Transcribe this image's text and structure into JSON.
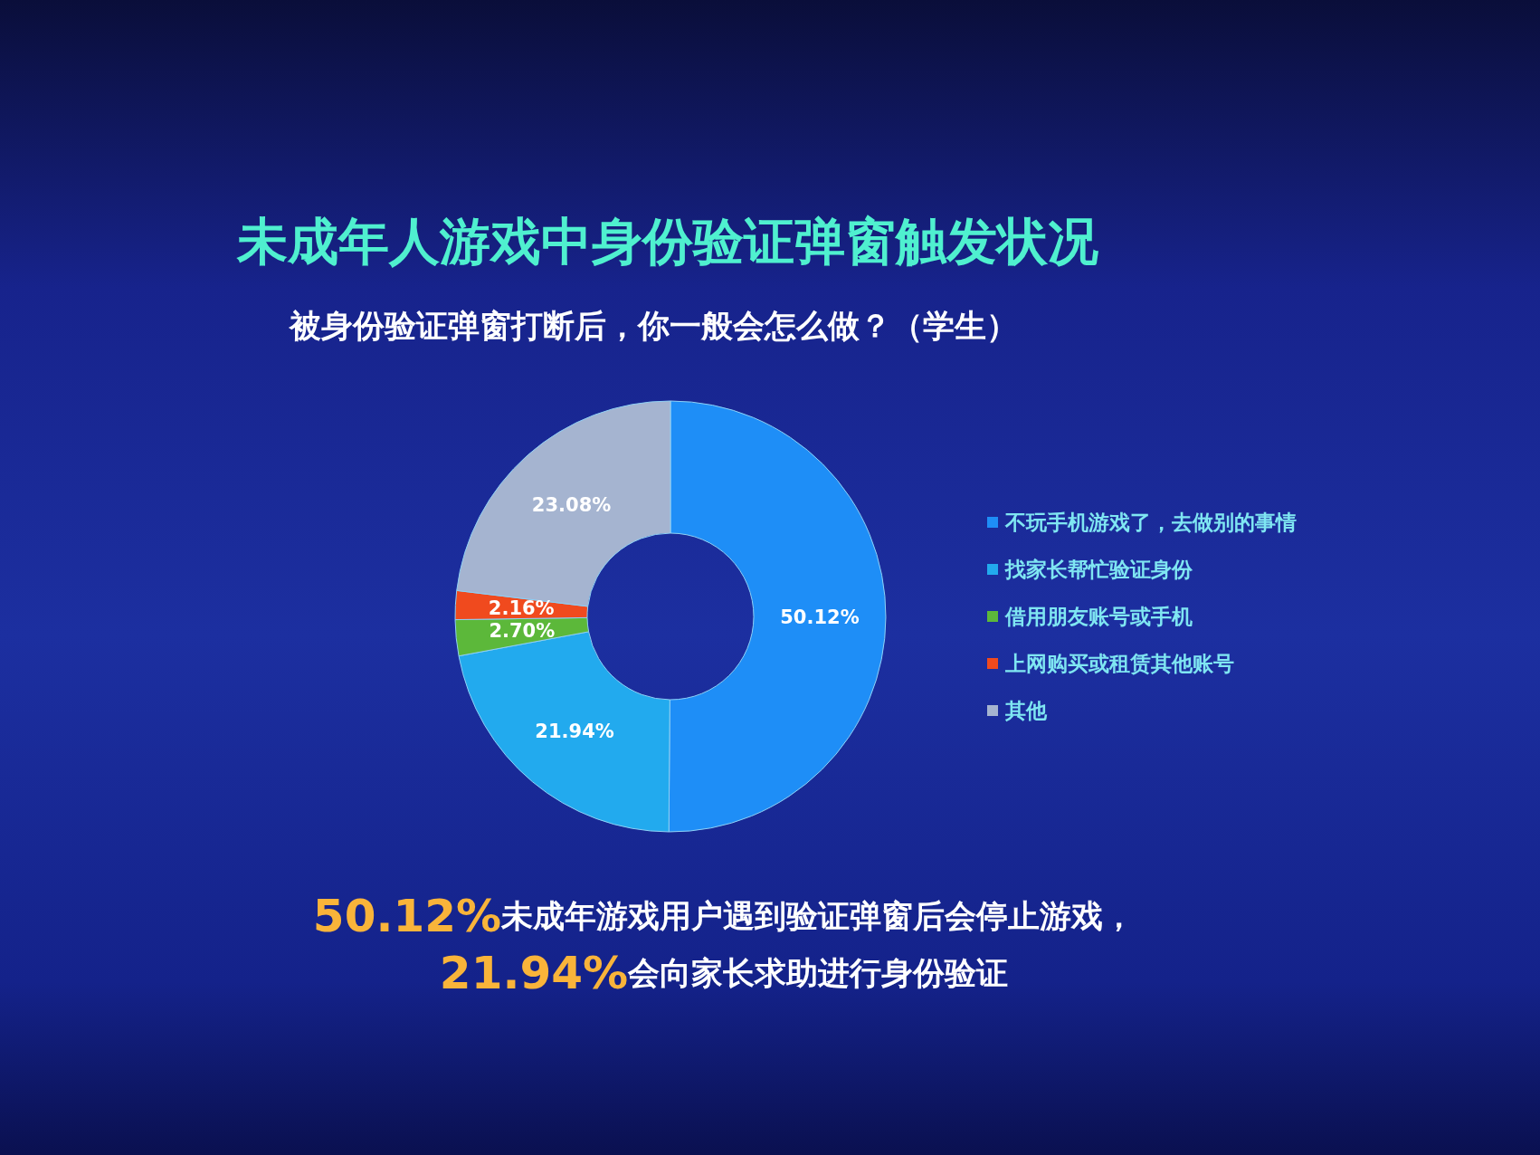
{
  "chart_data": {
    "type": "donut",
    "title": "未成年人游戏中身份验证弹窗触发状况",
    "subtitle": "被身份验证弹窗打断后，你一般会怎么做？（学生）",
    "categories": [
      "不玩手机游戏了，去做别的事情",
      "找家长帮忙验证身份",
      "借用朋友账号或手机",
      "上网购买或租赁其他账号",
      "其他"
    ],
    "values": [
      50.12,
      21.94,
      2.7,
      2.16,
      23.08
    ],
    "colors": [
      "#1e8ef7",
      "#22aaee",
      "#5cb83a",
      "#f04a1e",
      "#a5b4d0"
    ],
    "value_labels": [
      "50.12%",
      "21.94%",
      "2.70%",
      "2.16%",
      "23.08%"
    ],
    "legend": "right",
    "annotations": [
      "**50.12%**未成年游戏用户遇到验证弹窗后会停止游戏，",
      "**21.94%**会向家长求助进行身份验证"
    ]
  }
}
